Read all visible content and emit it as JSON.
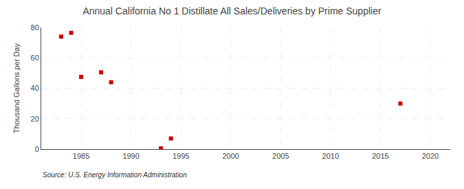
{
  "chart_data": {
    "type": "scatter",
    "title": "Annual California No 1 Distillate All Sales/Deliveries by Prime Supplier",
    "y_label": "Thousand Gallons per Day",
    "annotations": [
      "Source: U.S. Energy Information Administration"
    ],
    "x": [
      1983,
      1984,
      1985,
      1987,
      1988,
      1993,
      1994,
      2017
    ],
    "values": [
      74.0,
      76.5,
      47.5,
      50.5,
      44.0,
      0.5,
      7.0,
      30.0
    ],
    "color": "#cc0000",
    "marker": "square",
    "xlim": [
      1981,
      2022
    ],
    "xticks": [
      1985,
      1990,
      1995,
      2000,
      2005,
      2010,
      2015,
      2020
    ],
    "ylim": [
      0,
      80
    ],
    "yticks": [
      0,
      20,
      40,
      60,
      80
    ],
    "grid": true
  }
}
